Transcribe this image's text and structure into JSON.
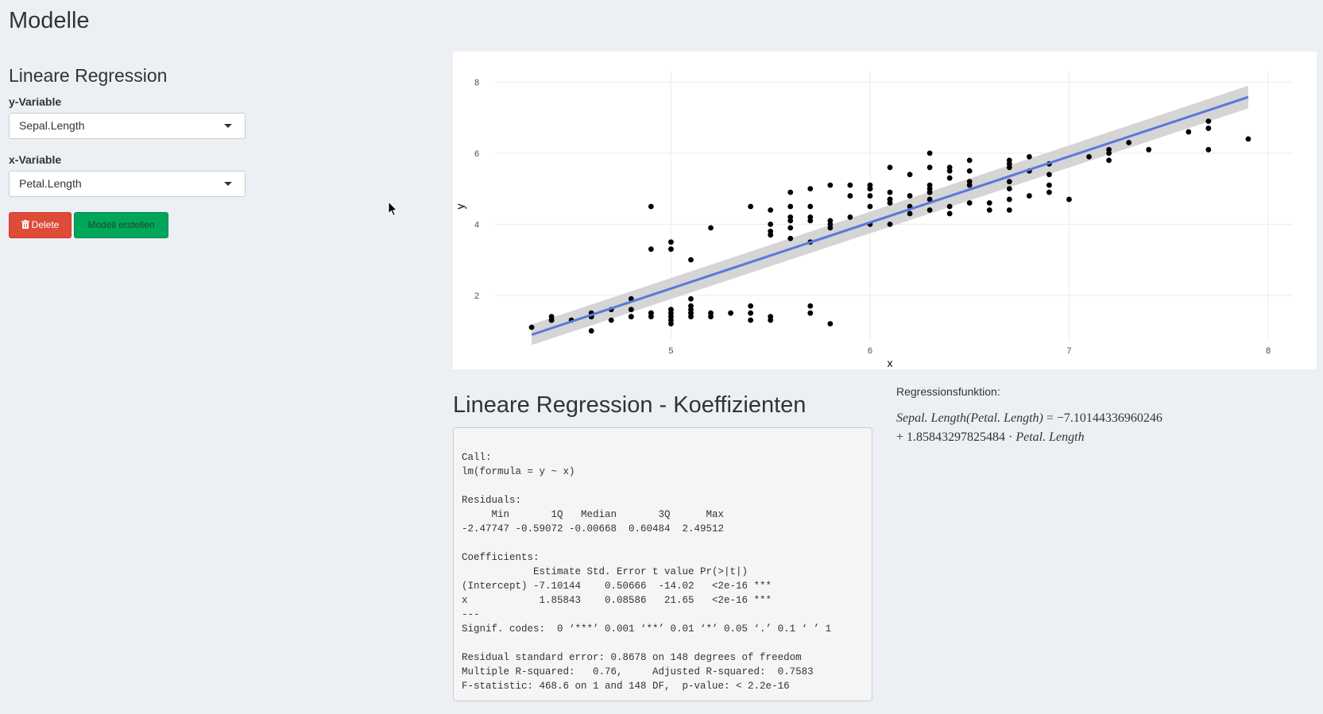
{
  "page": {
    "title": "Modelle"
  },
  "sidebar": {
    "section_title": "Lineare Regression",
    "y_label": "y-Variable",
    "y_value": "Sepal.Length",
    "x_label": "x-Variable",
    "x_value": "Petal.Length",
    "delete_label": "Delete",
    "create_label": "Modell erstellen"
  },
  "colors": {
    "delete": "#dd4b39",
    "create": "#00a65a",
    "regression_line": "#5b78d8",
    "confidence_band": "#d0d0d0",
    "points": "#000000"
  },
  "chart_data": {
    "type": "scatter",
    "xlabel": "x",
    "ylabel": "y",
    "xlim": [
      4.2,
      8.0
    ],
    "ylim": [
      0.7,
      8.3
    ],
    "xticks": [
      5,
      6,
      7,
      8
    ],
    "yticks": [
      2,
      4,
      6,
      8
    ],
    "grid": true,
    "points": [
      [
        4.3,
        1.1
      ],
      [
        4.4,
        1.4
      ],
      [
        4.4,
        1.3
      ],
      [
        4.4,
        1.3
      ],
      [
        4.5,
        1.3
      ],
      [
        4.6,
        1.5
      ],
      [
        4.6,
        1.4
      ],
      [
        4.6,
        1.0
      ],
      [
        4.6,
        1.4
      ],
      [
        4.7,
        1.3
      ],
      [
        4.7,
        1.6
      ],
      [
        4.8,
        1.6
      ],
      [
        4.8,
        1.4
      ],
      [
        4.8,
        1.9
      ],
      [
        4.8,
        1.4
      ],
      [
        4.8,
        1.6
      ],
      [
        4.9,
        1.5
      ],
      [
        4.9,
        1.4
      ],
      [
        4.9,
        1.5
      ],
      [
        4.9,
        4.5
      ],
      [
        4.9,
        3.3
      ],
      [
        5.0,
        1.4
      ],
      [
        5.0,
        1.5
      ],
      [
        5.0,
        1.6
      ],
      [
        5.0,
        1.2
      ],
      [
        5.0,
        1.3
      ],
      [
        5.0,
        1.6
      ],
      [
        5.0,
        3.5
      ],
      [
        5.0,
        3.3
      ],
      [
        5.1,
        1.4
      ],
      [
        5.1,
        1.5
      ],
      [
        5.1,
        1.7
      ],
      [
        5.1,
        1.9
      ],
      [
        5.1,
        1.6
      ],
      [
        5.1,
        1.5
      ],
      [
        5.1,
        3.0
      ],
      [
        5.2,
        1.5
      ],
      [
        5.2,
        1.4
      ],
      [
        5.2,
        3.9
      ],
      [
        5.3,
        1.5
      ],
      [
        5.4,
        1.7
      ],
      [
        5.4,
        1.5
      ],
      [
        5.4,
        1.3
      ],
      [
        5.4,
        4.5
      ],
      [
        5.5,
        1.4
      ],
      [
        5.5,
        1.3
      ],
      [
        5.5,
        4.0
      ],
      [
        5.5,
        3.8
      ],
      [
        5.5,
        3.7
      ],
      [
        5.5,
        4.4
      ],
      [
        5.6,
        3.6
      ],
      [
        5.6,
        4.5
      ],
      [
        5.6,
        3.9
      ],
      [
        5.6,
        4.2
      ],
      [
        5.6,
        4.1
      ],
      [
        5.6,
        4.9
      ],
      [
        5.7,
        1.5
      ],
      [
        5.7,
        1.7
      ],
      [
        5.7,
        4.5
      ],
      [
        5.7,
        4.2
      ],
      [
        5.7,
        4.1
      ],
      [
        5.7,
        3.5
      ],
      [
        5.7,
        5.0
      ],
      [
        5.8,
        1.2
      ],
      [
        5.8,
        4.1
      ],
      [
        5.8,
        4.0
      ],
      [
        5.8,
        3.9
      ],
      [
        5.8,
        5.1
      ],
      [
        5.9,
        4.8
      ],
      [
        5.9,
        4.2
      ],
      [
        5.9,
        5.1
      ],
      [
        6.0,
        4.5
      ],
      [
        6.0,
        4.0
      ],
      [
        6.0,
        5.0
      ],
      [
        6.0,
        4.8
      ],
      [
        6.0,
        5.1
      ],
      [
        6.0,
        5.0
      ],
      [
        6.1,
        4.7
      ],
      [
        6.1,
        4.6
      ],
      [
        6.1,
        4.0
      ],
      [
        6.1,
        4.9
      ],
      [
        6.1,
        5.6
      ],
      [
        6.1,
        4.7
      ],
      [
        6.2,
        4.3
      ],
      [
        6.2,
        4.5
      ],
      [
        6.2,
        4.8
      ],
      [
        6.2,
        5.4
      ],
      [
        6.3,
        4.7
      ],
      [
        6.3,
        4.9
      ],
      [
        6.3,
        4.4
      ],
      [
        6.3,
        5.6
      ],
      [
        6.3,
        5.1
      ],
      [
        6.3,
        6.0
      ],
      [
        6.3,
        5.0
      ],
      [
        6.3,
        4.9
      ],
      [
        6.4,
        4.5
      ],
      [
        6.4,
        4.3
      ],
      [
        6.4,
        5.3
      ],
      [
        6.4,
        5.5
      ],
      [
        6.4,
        5.6
      ],
      [
        6.5,
        4.6
      ],
      [
        6.5,
        5.2
      ],
      [
        6.5,
        5.8
      ],
      [
        6.5,
        5.5
      ],
      [
        6.5,
        5.1
      ],
      [
        6.6,
        4.6
      ],
      [
        6.6,
        4.4
      ],
      [
        6.7,
        4.7
      ],
      [
        6.7,
        4.4
      ],
      [
        6.7,
        5.0
      ],
      [
        6.7,
        5.8
      ],
      [
        6.7,
        5.7
      ],
      [
        6.7,
        5.6
      ],
      [
        6.7,
        5.2
      ],
      [
        6.8,
        4.8
      ],
      [
        6.8,
        5.5
      ],
      [
        6.8,
        5.9
      ],
      [
        6.9,
        4.9
      ],
      [
        6.9,
        5.4
      ],
      [
        6.9,
        5.7
      ],
      [
        6.9,
        5.1
      ],
      [
        7.0,
        4.7
      ],
      [
        7.1,
        5.9
      ],
      [
        7.2,
        6.1
      ],
      [
        7.2,
        6.0
      ],
      [
        7.2,
        5.8
      ],
      [
        7.3,
        6.3
      ],
      [
        7.4,
        6.1
      ],
      [
        7.6,
        6.6
      ],
      [
        7.7,
        6.7
      ],
      [
        7.7,
        6.9
      ],
      [
        7.7,
        6.1
      ],
      [
        7.9,
        6.4
      ]
    ],
    "regression_line": {
      "x": [
        4.3,
        7.9
      ],
      "y": [
        0.89,
        7.58
      ]
    },
    "confidence_band": {
      "x": [
        4.3,
        7.9
      ],
      "ymin": [
        0.6,
        7.26
      ],
      "ymax": [
        1.18,
        7.9
      ]
    }
  },
  "results": {
    "coef_title": "Lineare Regression - Koeffizienten",
    "summary_lines": [
      "Call:",
      "lm(formula = y ~ x)",
      "",
      "Residuals:",
      "     Min       1Q   Median       3Q      Max ",
      "-2.47747 -0.59072 -0.00668  0.60484  2.49512 ",
      "",
      "Coefficients:",
      "            Estimate Std. Error t value Pr(>|t|)    ",
      "(Intercept) -7.10144    0.50666  -14.02   <2e-16 ***",
      "x            1.85843    0.08586   21.65   <2e-16 ***",
      "---",
      "Signif. codes:  0 ‘***’ 0.001 ‘**’ 0.01 ‘*’ 0.05 ‘.’ 0.1 ‘ ’ 1",
      "",
      "Residual standard error: 0.8678 on 148 degrees of freedom",
      "Multiple R-squared:   0.76,\tAdjusted R-squared:  0.7583 ",
      "F-statistic: 468.6 on 1 and 148 DF,  p-value: < 2.2e-16"
    ],
    "formula_label": "Regressionsfunktion:",
    "formula_lhs": "Sepal. Length(Petal. Length)",
    "formula_eq": " = −7.10144336960246",
    "formula_plus": "+ 1.85843297825484 · ",
    "formula_var": "Petal. Length"
  }
}
